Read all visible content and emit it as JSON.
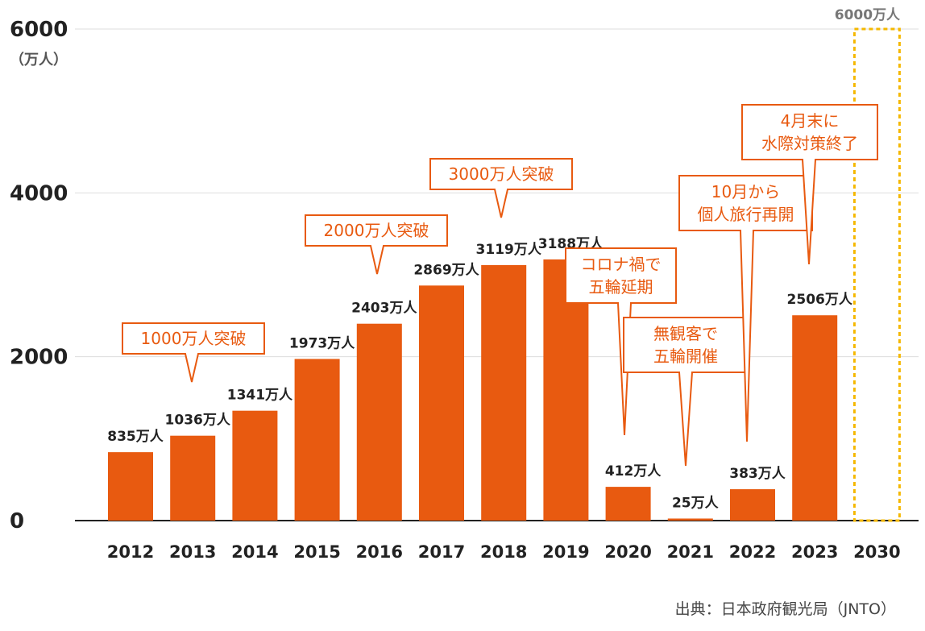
{
  "chart_data": {
    "type": "bar",
    "categories": [
      "2012",
      "2013",
      "2014",
      "2015",
      "2016",
      "2017",
      "2018",
      "2019",
      "2020",
      "2021",
      "2022",
      "2023",
      "2030"
    ],
    "values": [
      835,
      1036,
      1341,
      1973,
      2403,
      2869,
      3119,
      3188,
      412,
      25,
      383,
      2506,
      null
    ],
    "value_labels": [
      "835万人",
      "1036万人",
      "1341万人",
      "1973万人",
      "2403万人",
      "2869万人",
      "3119万人",
      "3188万人",
      "412万人",
      "25万人",
      "383万人",
      "2506万人",
      ""
    ],
    "target": {
      "category": "2030",
      "value": 6000,
      "label": "6000万人"
    },
    "ylim": [
      0,
      6000
    ],
    "yticks": [
      "0",
      "2000",
      "4000",
      "6000"
    ],
    "ytick_values": [
      0,
      2000,
      4000,
      6000
    ],
    "yunit": "（万人）",
    "grid": true,
    "bar_color": "#e85a10",
    "target_color": "#f5b800",
    "annotations": [
      {
        "lines": [
          "1000万人突破"
        ],
        "category": "2013"
      },
      {
        "lines": [
          "2000万人突破"
        ],
        "category": "2016"
      },
      {
        "lines": [
          "3000万人突破"
        ],
        "category": "2018"
      },
      {
        "lines": [
          "コロナ禍で",
          "五輪延期"
        ],
        "category": "2020"
      },
      {
        "lines": [
          "無観客で",
          "五輪開催"
        ],
        "category": "2021"
      },
      {
        "lines": [
          "10月から",
          "個人旅行再開"
        ],
        "category": "2022"
      },
      {
        "lines": [
          "4月末に",
          "水際対策終了"
        ],
        "category": "2023"
      }
    ]
  },
  "source": "出典：日本政府観光局（JNTO）"
}
